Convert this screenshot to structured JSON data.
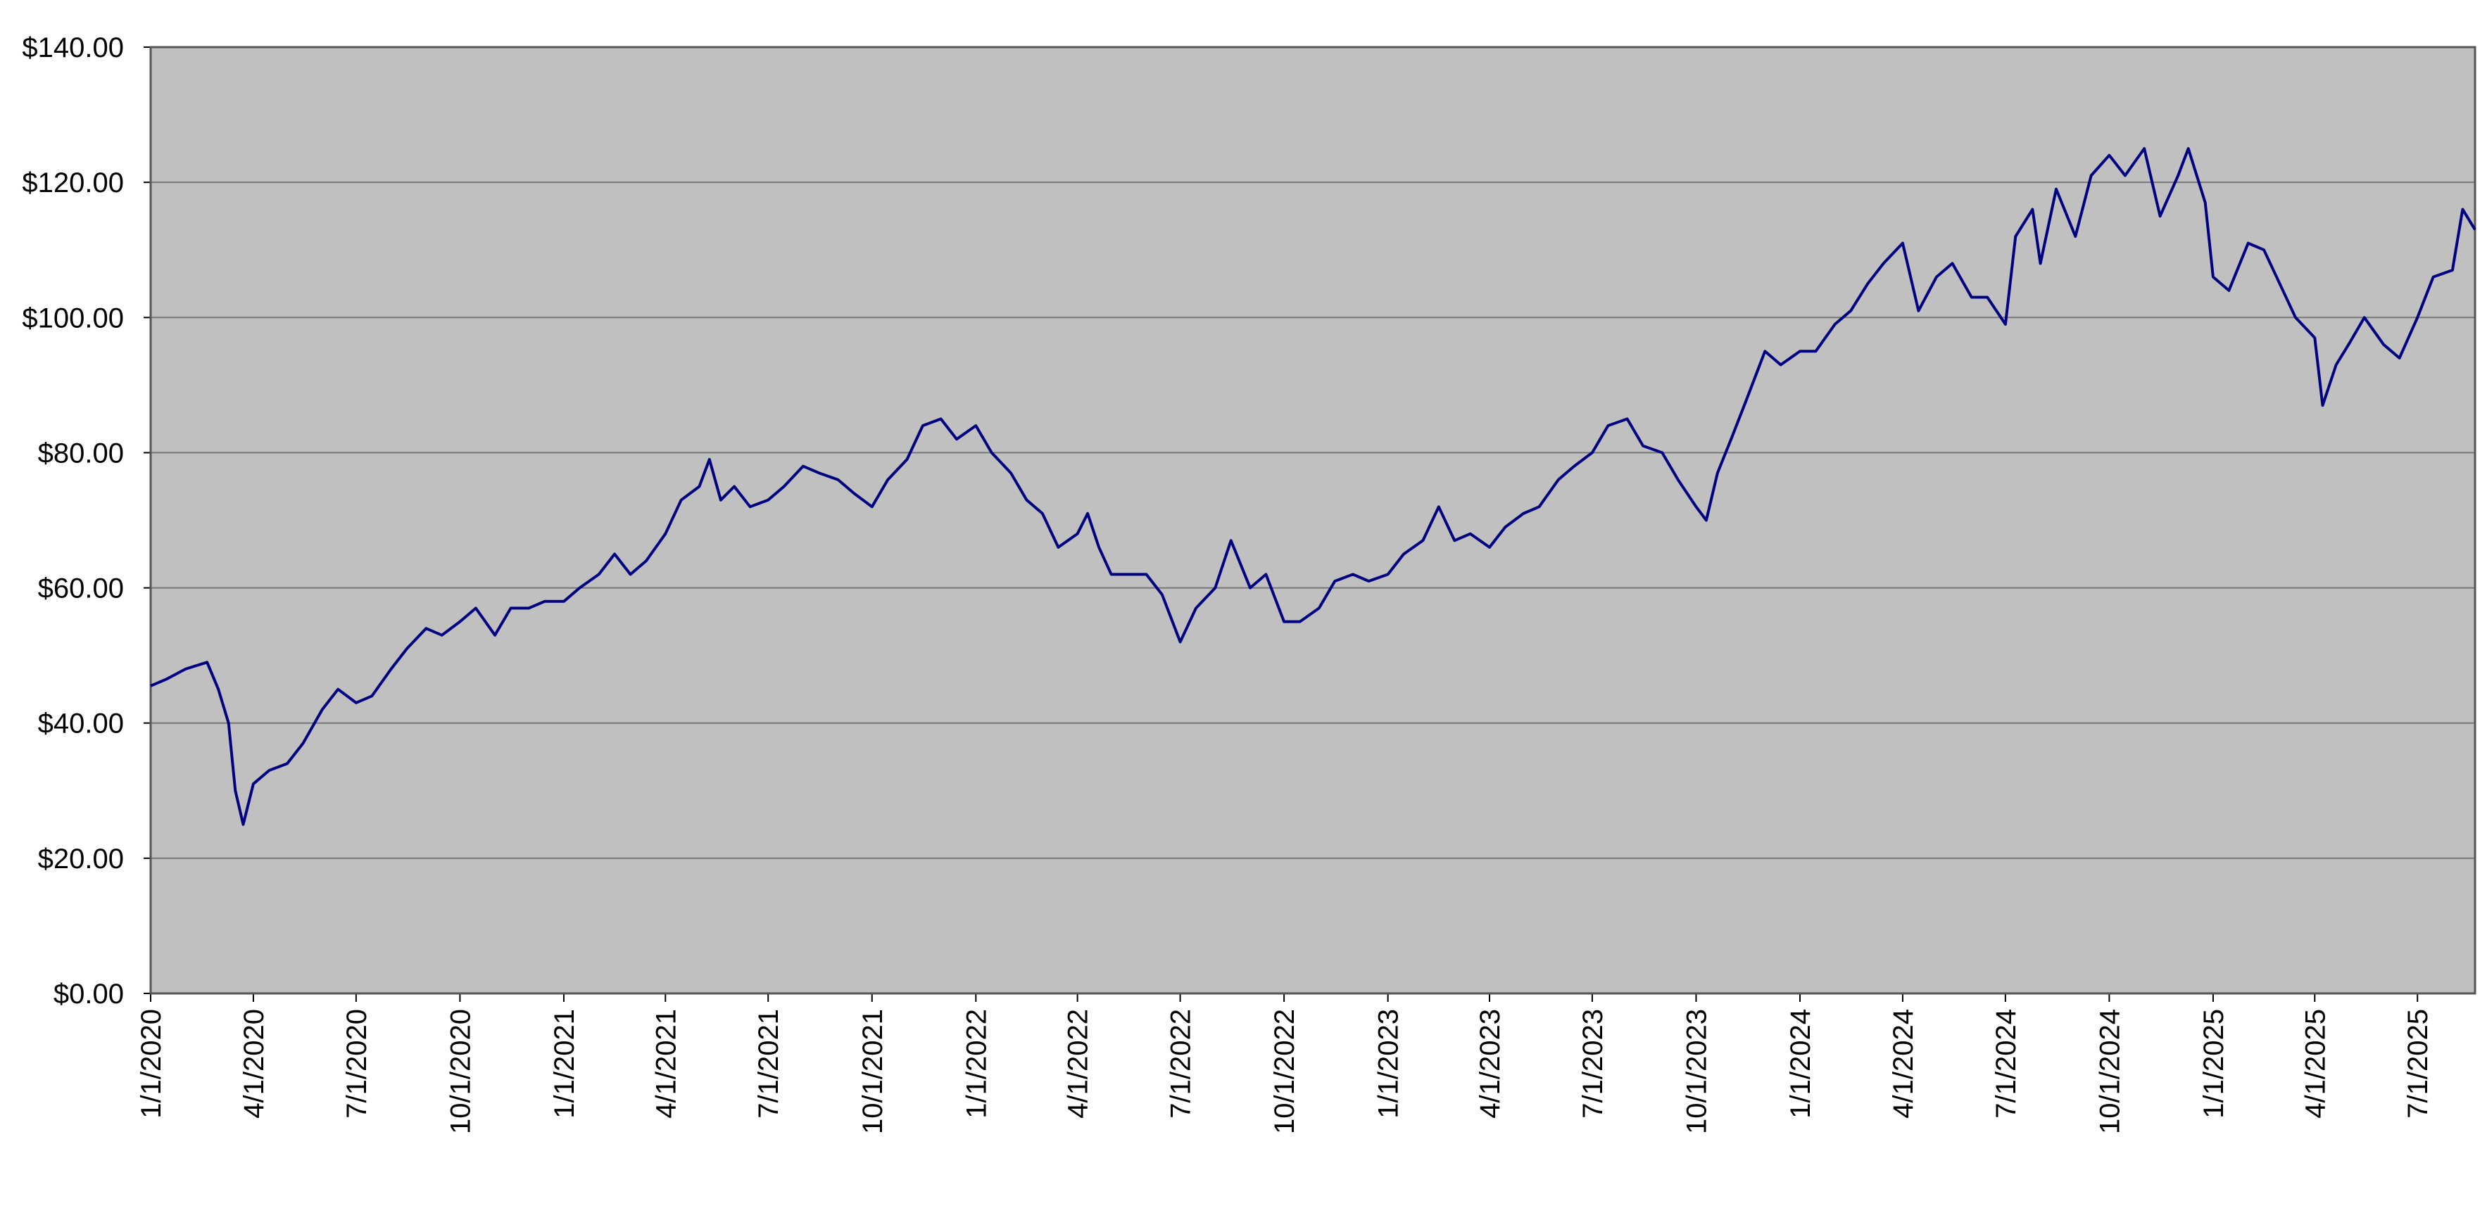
{
  "chart_data": {
    "type": "line",
    "x": [
      "1/1/2020",
      "1/15/2020",
      "2/1/2020",
      "2/20/2020",
      "3/1/2020",
      "3/10/2020",
      "3/16/2020",
      "3/23/2020",
      "4/1/2020",
      "4/15/2020",
      "5/1/2020",
      "5/15/2020",
      "6/1/2020",
      "6/15/2020",
      "7/1/2020",
      "7/15/2020",
      "8/1/2020",
      "8/15/2020",
      "9/1/2020",
      "9/15/2020",
      "10/1/2020",
      "10/15/2020",
      "11/1/2020",
      "11/15/2020",
      "12/1/2020",
      "12/15/2020",
      "1/1/2021",
      "1/15/2021",
      "2/1/2021",
      "2/15/2021",
      "3/1/2021",
      "3/15/2021",
      "4/1/2021",
      "4/15/2021",
      "5/1/2021",
      "5/10/2021",
      "5/20/2021",
      "6/1/2021",
      "6/15/2021",
      "7/1/2021",
      "7/15/2021",
      "8/1/2021",
      "8/15/2021",
      "9/1/2021",
      "9/15/2021",
      "10/1/2021",
      "10/15/2021",
      "11/1/2021",
      "11/15/2021",
      "12/1/2021",
      "12/15/2021",
      "1/1/2022",
      "1/15/2022",
      "2/1/2022",
      "2/15/2022",
      "3/1/2022",
      "3/15/2022",
      "4/1/2022",
      "4/10/2022",
      "4/20/2022",
      "5/1/2022",
      "5/15/2022",
      "6/1/2022",
      "6/15/2022",
      "7/1/2022",
      "7/15/2022",
      "8/1/2022",
      "8/15/2022",
      "9/1/2022",
      "9/15/2022",
      "10/1/2022",
      "10/15/2022",
      "11/1/2022",
      "11/15/2022",
      "12/1/2022",
      "12/15/2022",
      "1/1/2023",
      "1/15/2023",
      "2/1/2023",
      "2/15/2023",
      "3/1/2023",
      "3/15/2023",
      "4/1/2023",
      "4/15/2023",
      "5/1/2023",
      "5/15/2023",
      "6/1/2023",
      "6/15/2023",
      "7/1/2023",
      "7/15/2023",
      "8/1/2023",
      "8/15/2023",
      "9/1/2023",
      "9/15/2023",
      "10/1/2023",
      "10/10/2023",
      "10/20/2023",
      "11/1/2023",
      "11/15/2023",
      "12/1/2023",
      "12/15/2023",
      "1/1/2024",
      "1/15/2024",
      "2/1/2024",
      "2/15/2024",
      "3/1/2024",
      "3/15/2024",
      "4/1/2024",
      "4/15/2024",
      "5/1/2024",
      "5/15/2024",
      "6/1/2024",
      "6/15/2024",
      "7/1/2024",
      "7/10/2024",
      "7/25/2024",
      "8/1/2024",
      "8/15/2024",
      "9/1/2024",
      "9/15/2024",
      "10/1/2024",
      "10/15/2024",
      "11/1/2024",
      "11/15/2024",
      "12/1/2024",
      "12/10/2024",
      "12/25/2024",
      "1/1/2025",
      "1/15/2025",
      "2/1/2025",
      "2/15/2025",
      "3/1/2025",
      "3/15/2025",
      "4/1/2025",
      "4/8/2025",
      "4/20/2025",
      "5/1/2025",
      "5/15/2025",
      "6/1/2025",
      "6/15/2025",
      "7/1/2025",
      "7/15/2025",
      "8/1/2025",
      "8/10/2025",
      "8/21/2025"
    ],
    "series": [
      {
        "color": "#000080",
        "values": [
          45.5,
          46.5,
          48,
          49,
          45,
          40,
          30,
          25,
          31,
          33,
          34,
          37,
          42,
          45,
          43,
          44,
          48,
          51,
          54,
          53,
          55,
          57,
          53,
          57,
          57,
          58,
          58,
          60,
          62,
          65,
          62,
          64,
          68,
          73,
          75,
          79,
          73,
          75,
          72,
          73,
          75,
          78,
          77,
          76,
          74,
          72,
          76,
          79,
          84,
          85,
          82,
          84,
          80,
          77,
          73,
          71,
          66,
          68,
          71,
          66,
          62,
          62,
          62,
          59,
          52,
          57,
          60,
          67,
          60,
          62,
          55,
          55,
          57,
          61,
          62,
          61,
          62,
          65,
          67,
          72,
          67,
          68,
          66,
          69,
          71,
          72,
          76,
          78,
          80,
          84,
          85,
          81,
          80,
          76,
          72,
          70,
          77,
          82,
          88,
          95,
          93,
          95,
          95,
          99,
          101,
          105,
          108,
          111,
          101,
          106,
          108,
          103,
          103,
          99,
          112,
          116,
          108,
          119,
          112,
          121,
          124,
          121,
          125,
          115,
          121,
          125,
          117,
          106,
          104,
          111,
          110,
          105,
          100,
          97,
          87,
          93,
          96,
          100,
          96,
          94,
          100,
          106,
          107,
          116,
          113
        ]
      }
    ],
    "xlim": [
      "1/1/2020",
      "8/21/2025"
    ],
    "xticks": [
      "1/1/2020",
      "4/1/2020",
      "7/1/2020",
      "10/1/2020",
      "1/1/2021",
      "4/1/2021",
      "7/1/2021",
      "10/1/2021",
      "1/1/2022",
      "4/1/2022",
      "7/1/2022",
      "10/1/2022",
      "1/1/2023",
      "4/1/2023",
      "7/1/2023",
      "10/1/2023",
      "1/1/2024",
      "4/1/2024",
      "7/1/2024",
      "10/1/2024",
      "1/1/2025",
      "4/1/2025",
      "7/1/2025"
    ],
    "ylim": [
      0,
      140
    ],
    "yticks": [
      {
        "value": 0,
        "label": "$0.00"
      },
      {
        "value": 20,
        "label": "$20.00"
      },
      {
        "value": 40,
        "label": "$40.00"
      },
      {
        "value": 60,
        "label": "$60.00"
      },
      {
        "value": 80,
        "label": "$80.00"
      },
      {
        "value": 100,
        "label": "$100.00"
      },
      {
        "value": 120,
        "label": "$120.00"
      },
      {
        "value": 140,
        "label": "$140.00"
      }
    ],
    "grid": true,
    "plot_background": "#c0c0c0"
  }
}
